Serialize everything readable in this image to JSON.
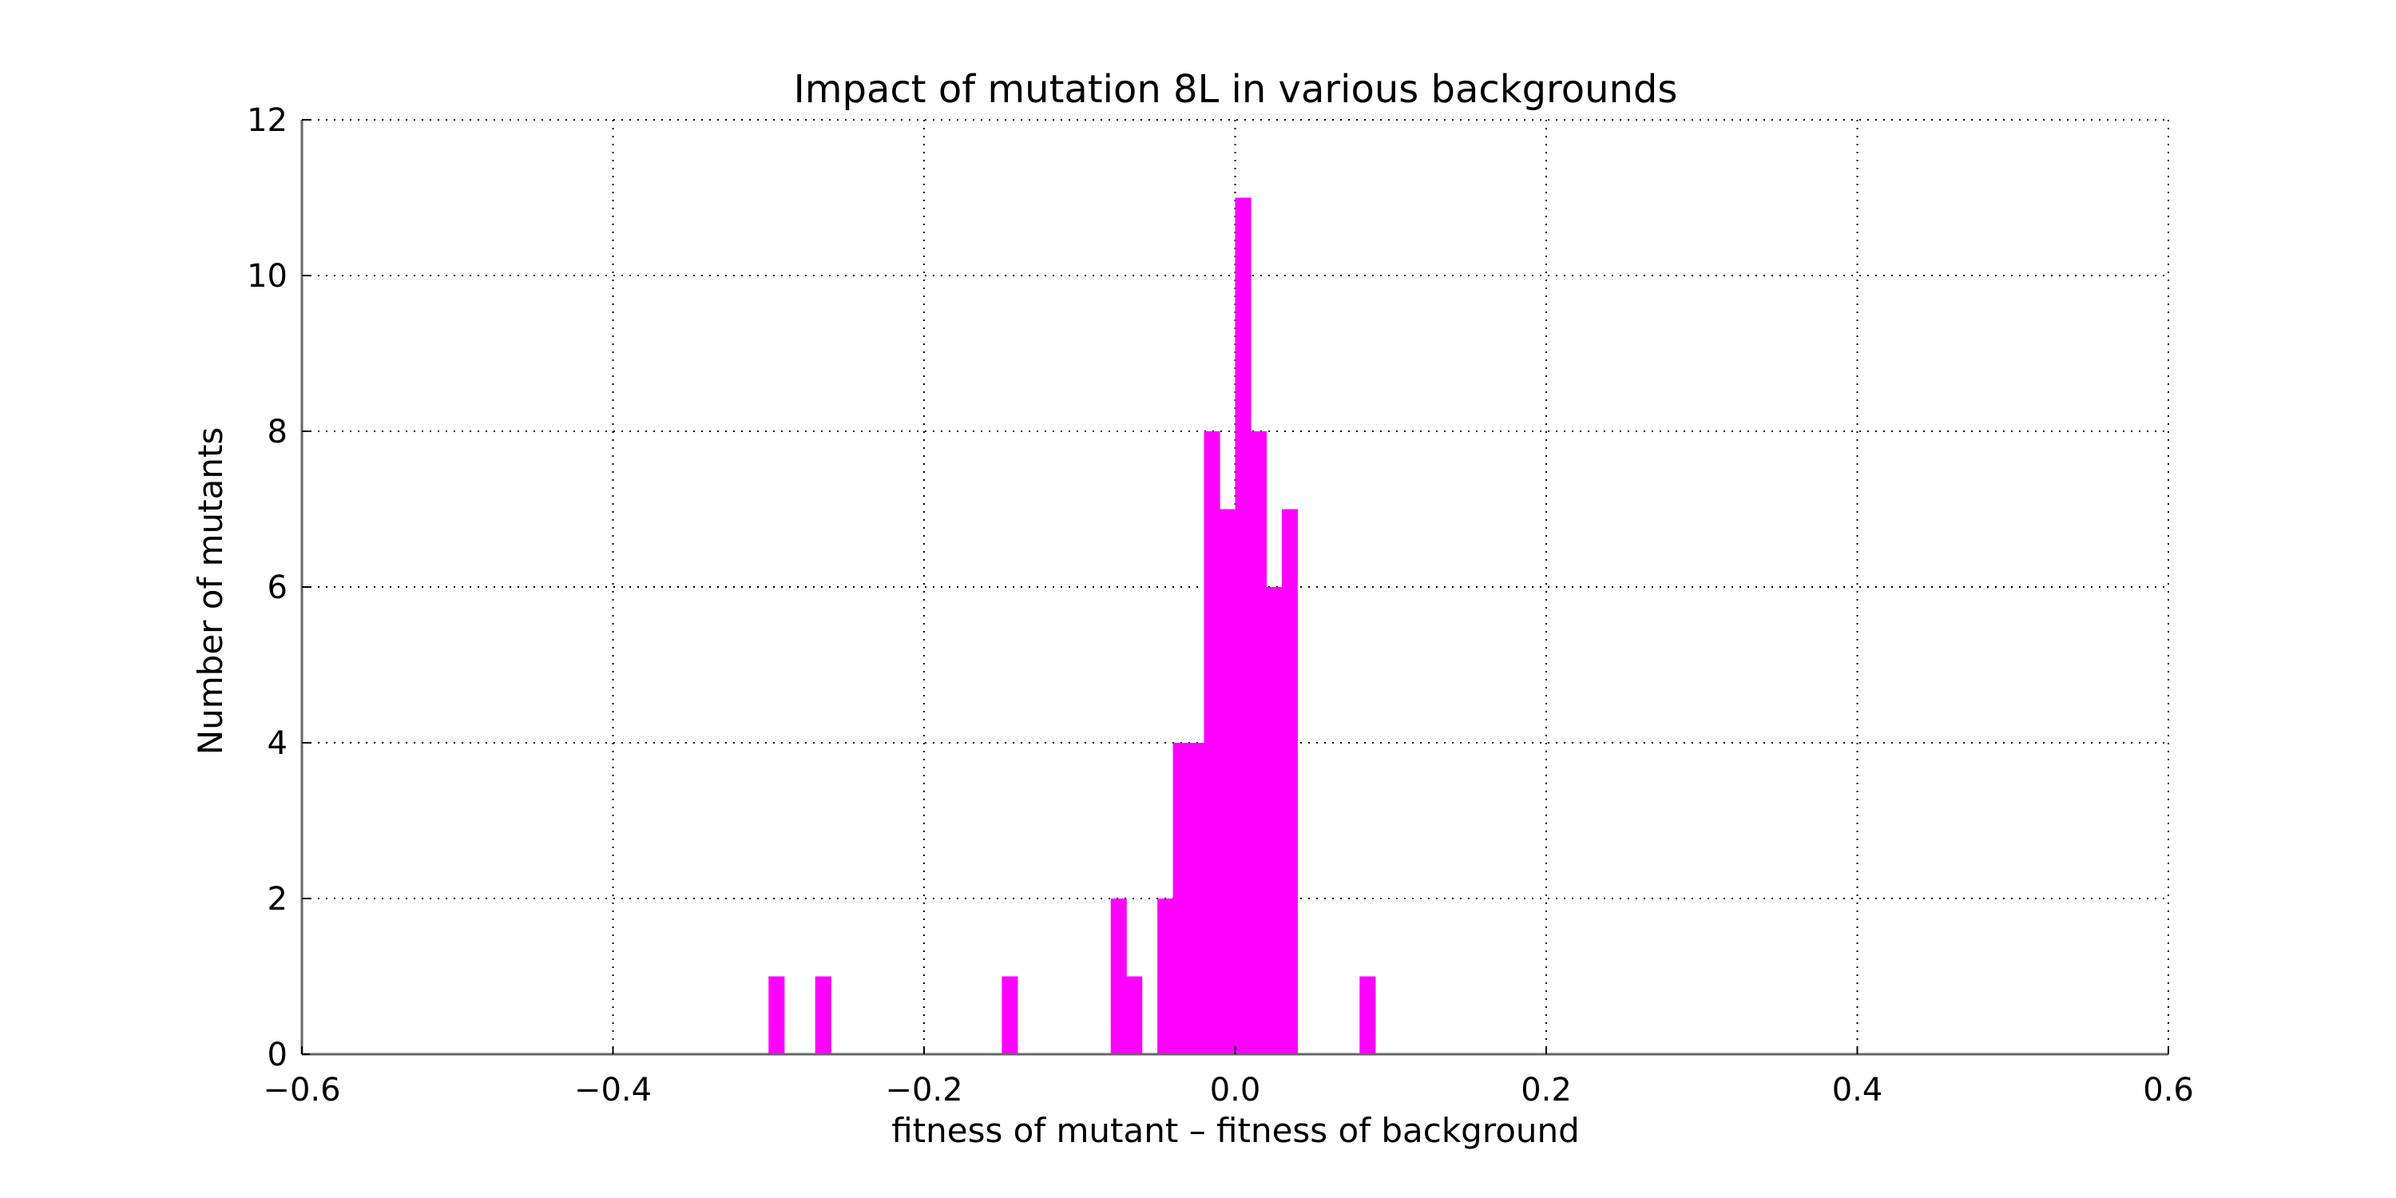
{
  "chart_data": {
    "type": "bar",
    "title": "Impact of mutation 8L in various backgrounds",
    "xlabel": "fitness of mutant  –  fitness of background",
    "ylabel": "Number of mutants",
    "xlim": [
      -0.6,
      0.6
    ],
    "ylim": [
      0,
      12
    ],
    "x_ticks": [
      "−0.6",
      "−0.4",
      "−0.2",
      "0.0",
      "0.2",
      "0.4",
      "0.6"
    ],
    "x_tick_values": [
      -0.6,
      -0.4,
      -0.2,
      0.0,
      0.2,
      0.4,
      0.6
    ],
    "y_ticks": [
      "0",
      "2",
      "4",
      "6",
      "8",
      "10",
      "12"
    ],
    "y_tick_values": [
      0,
      2,
      4,
      6,
      8,
      10,
      12
    ],
    "grid": true,
    "bar_color": "#ff00ff",
    "bin_width": 0.01,
    "bins": [
      {
        "x0": -0.3,
        "count": 1
      },
      {
        "x0": -0.27,
        "count": 1
      },
      {
        "x0": -0.15,
        "count": 1
      },
      {
        "x0": -0.08,
        "count": 2
      },
      {
        "x0": -0.07,
        "count": 1
      },
      {
        "x0": -0.05,
        "count": 2
      },
      {
        "x0": -0.04,
        "count": 4
      },
      {
        "x0": -0.03,
        "count": 4
      },
      {
        "x0": -0.02,
        "count": 8
      },
      {
        "x0": -0.01,
        "count": 7
      },
      {
        "x0": 0.0,
        "count": 11
      },
      {
        "x0": 0.01,
        "count": 8
      },
      {
        "x0": 0.02,
        "count": 6
      },
      {
        "x0": 0.03,
        "count": 7
      },
      {
        "x0": 0.08,
        "count": 1
      }
    ]
  }
}
